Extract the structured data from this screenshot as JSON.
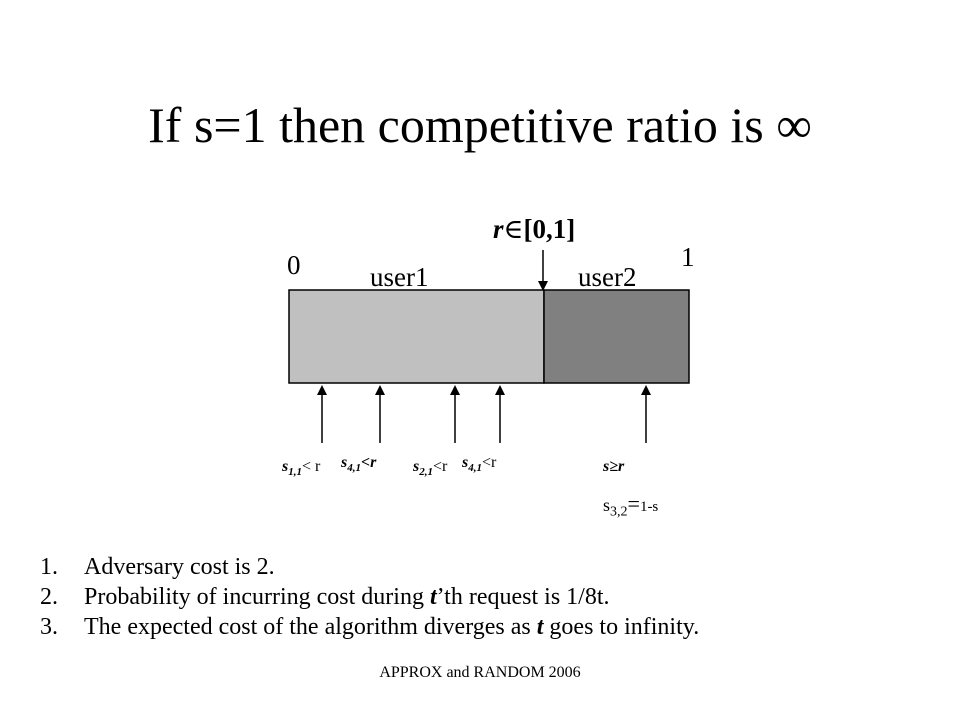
{
  "slide": {
    "title": "If s=1 then competitive ratio is ∞"
  },
  "diagram": {
    "r_label_r": "r",
    "r_label_elem": "∈",
    "r_label_range": "[0,1]",
    "left_end": "0",
    "right_end": "1",
    "user1": "user1",
    "user2": "user2",
    "colors": {
      "user1_fill": "#c0c0c0",
      "user2_fill": "#808080"
    },
    "requests": [
      {
        "s": "s",
        "sub": "1,1",
        "rel": "< r"
      },
      {
        "s": "s",
        "sub": "4,1",
        "rel": "<r"
      },
      {
        "s": "s",
        "sub": "2,1",
        "rel": "<r"
      },
      {
        "s": "s",
        "sub": "4,1",
        "rel": "<r"
      }
    ],
    "s_ge_r": "s≥r",
    "s32_s": "s",
    "s32_sub": "3,2",
    "s32_eq": "=",
    "s32_val": "1-s"
  },
  "list": [
    {
      "num": "1.",
      "text": "Adversary cost is 2."
    },
    {
      "num": "2.",
      "pre": "Probability of incurring cost during ",
      "em": "t",
      "post": "’th request is 1/8t."
    },
    {
      "num": "3.",
      "pre": "The expected cost of the algorithm diverges as ",
      "em": "t",
      "post": " goes to infinity."
    }
  ],
  "footer": "APPROX and RANDOM 2006"
}
